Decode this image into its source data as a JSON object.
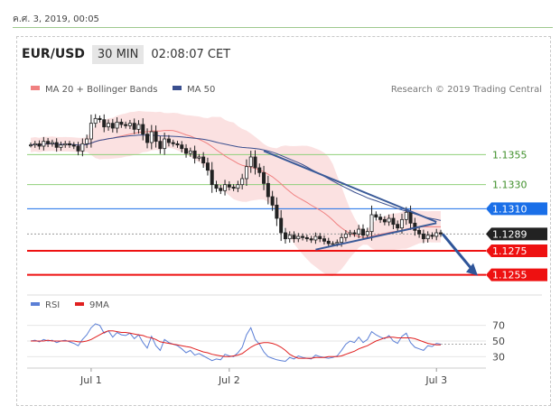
{
  "date_label": "ค.ศ. 3, 2019, 00:05",
  "header": {
    "pair": "EUR/USD",
    "interval": "30 MIN",
    "time": "02:08:07 CET"
  },
  "chart_data": {
    "type": "candlestick",
    "legend": [
      {
        "name": "MA 20 + Bollinger Bands",
        "color": "#f08080"
      },
      {
        "name": "MA 50",
        "color": "#3a4f8f"
      }
    ],
    "credit": "Research © 2019 Trading Central",
    "y_range": [
      1.1245,
      1.1395
    ],
    "levels": [
      {
        "value": 1.1355,
        "label": "1.1355",
        "color": "#8fd07a",
        "style": "green-line"
      },
      {
        "value": 1.133,
        "label": "1.1330",
        "color": "#8fd07a",
        "style": "green-line"
      },
      {
        "value": 1.131,
        "label": "1.1310",
        "color": "#1a6fe8",
        "style": "blue-badge"
      },
      {
        "value": 1.1289,
        "label": "1.1289",
        "color": "#222222",
        "style": "current-badge"
      },
      {
        "value": 1.1275,
        "label": "1.1275",
        "color": "#ee1111",
        "style": "red-badge"
      },
      {
        "value": 1.1255,
        "label": "1.1255",
        "color": "#ee1111",
        "style": "red-badge"
      }
    ],
    "x_ticks": [
      "Jul 1",
      "Jul 2",
      "Jul 3"
    ],
    "closes": [
      1.1363,
      1.1364,
      1.1362,
      1.1366,
      1.1364,
      1.1365,
      1.1361,
      1.1363,
      1.1364,
      1.1363,
      1.1362,
      1.1358,
      1.1364,
      1.1368,
      1.1381,
      1.1385,
      1.1384,
      1.1378,
      1.1381,
      1.1377,
      1.1382,
      1.138,
      1.1379,
      1.1381,
      1.1376,
      1.138,
      1.1372,
      1.1365,
      1.1374,
      1.1366,
      1.136,
      1.1368,
      1.1365,
      1.1364,
      1.1363,
      1.136,
      1.1356,
      1.1358,
      1.1352,
      1.1353,
      1.1348,
      1.1342,
      1.133,
      1.1327,
      1.1325,
      1.133,
      1.1328,
      1.1327,
      1.133,
      1.1335,
      1.1345,
      1.1353,
      1.1344,
      1.134,
      1.1331,
      1.132,
      1.1313,
      1.1302,
      1.129,
      1.1285,
      1.1288,
      1.1285,
      1.1287,
      1.1286,
      1.1285,
      1.1284,
      1.1287,
      1.1285,
      1.1283,
      1.1281,
      1.1281,
      1.1282,
      1.1286,
      1.1289,
      1.129,
      1.1289,
      1.1293,
      1.1288,
      1.1291,
      1.1305,
      1.1303,
      1.1301,
      1.1299,
      1.1302,
      1.1297,
      1.1294,
      1.1301,
      1.1307,
      1.1298,
      1.1292,
      1.1289,
      1.1285,
      1.1288,
      1.1287,
      1.129,
      1.1289
    ],
    "projection": {
      "from": 1.1289,
      "to": 1.1255
    },
    "rsi": {
      "legend": [
        {
          "name": "RSI",
          "color": "#5b7fd6"
        },
        {
          "name": "9MA",
          "color": "#e02020"
        }
      ],
      "y_range": [
        20,
        80
      ],
      "ticks": [
        70,
        50,
        30
      ],
      "values": [
        50,
        51,
        49,
        52,
        50,
        51,
        48,
        50,
        51,
        49,
        47,
        44,
        52,
        58,
        67,
        72,
        70,
        60,
        63,
        55,
        61,
        58,
        57,
        60,
        53,
        58,
        48,
        41,
        56,
        44,
        38,
        52,
        48,
        46,
        44,
        40,
        35,
        38,
        32,
        34,
        31,
        28,
        25,
        27,
        26,
        33,
        31,
        30,
        35,
        42,
        58,
        67,
        52,
        46,
        36,
        30,
        28,
        26,
        25,
        24,
        29,
        27,
        31,
        29,
        28,
        27,
        32,
        30,
        29,
        28,
        29,
        31,
        38,
        46,
        50,
        48,
        55,
        48,
        52,
        62,
        58,
        55,
        53,
        57,
        50,
        47,
        56,
        60,
        48,
        42,
        40,
        38,
        44,
        43,
        47,
        46
      ],
      "ma9": [
        50,
        50,
        50,
        50,
        51,
        50,
        50,
        50,
        50,
        50,
        50,
        49,
        49,
        50,
        52,
        55,
        58,
        61,
        63,
        63,
        62,
        61,
        61,
        60,
        59,
        58,
        57,
        55,
        54,
        52,
        49,
        48,
        47,
        46,
        45,
        44,
        43,
        42,
        40,
        38,
        36,
        35,
        33,
        32,
        31,
        30,
        30,
        31,
        32,
        34,
        38,
        42,
        45,
        47,
        48,
        48,
        47,
        45,
        42,
        38,
        33,
        30,
        28,
        28,
        28,
        28,
        29,
        29,
        29,
        30,
        30,
        30,
        31,
        33,
        35,
        37,
        40,
        42,
        44,
        47,
        50,
        52,
        54,
        55,
        55,
        54,
        54,
        54,
        54,
        53,
        51,
        49,
        47,
        46,
        45,
        45
      ]
    }
  }
}
